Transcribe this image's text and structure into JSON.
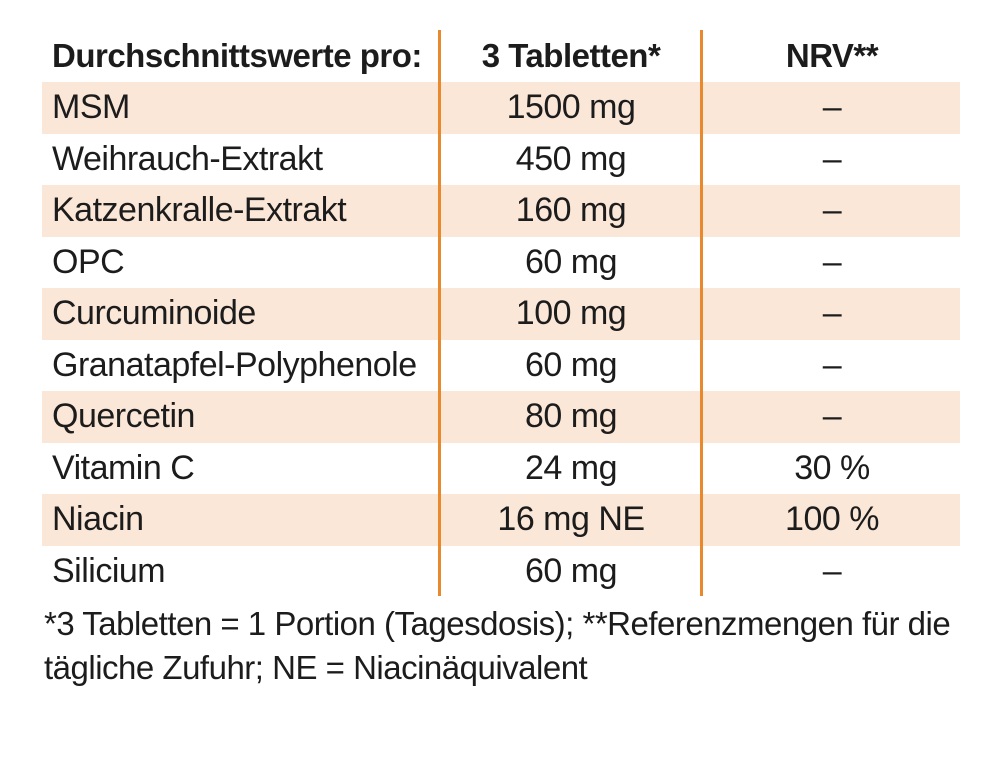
{
  "header": {
    "name": "Durchschnittswerte pro:",
    "amount": "3 Tabletten*",
    "nrv": "NRV**"
  },
  "rows": [
    {
      "name": "MSM",
      "amount": "1500 mg",
      "nrv": "–"
    },
    {
      "name": "Weihrauch-Extrakt",
      "amount": "450 mg",
      "nrv": "–"
    },
    {
      "name": "Katzenkralle-Extrakt",
      "amount": "160 mg",
      "nrv": "–"
    },
    {
      "name": "OPC",
      "amount": "60 mg",
      "nrv": "–"
    },
    {
      "name": "Curcuminoide",
      "amount": "100 mg",
      "nrv": "–"
    },
    {
      "name": "Granatapfel-Polyphenole",
      "amount": "60 mg",
      "nrv": "–"
    },
    {
      "name": "Quercetin",
      "amount": "80 mg",
      "nrv": "–"
    },
    {
      "name": "Vitamin C",
      "amount": "24 mg",
      "nrv": "30 %"
    },
    {
      "name": "Niacin",
      "amount": "16 mg NE",
      "nrv": "100 %"
    },
    {
      "name": "Silicium",
      "amount": "60 mg",
      "nrv": "–"
    }
  ],
  "footnote": {
    "line1": "*3 Tabletten = 1 Portion (Tagesdosis); **Referenzmengen für die",
    "line2": "tägliche Zufuhr; NE = Niacinäquivalent"
  },
  "colors": {
    "row_shade": "#fbe7d8",
    "divider": "#e8892d",
    "text": "#1c1c1c"
  }
}
